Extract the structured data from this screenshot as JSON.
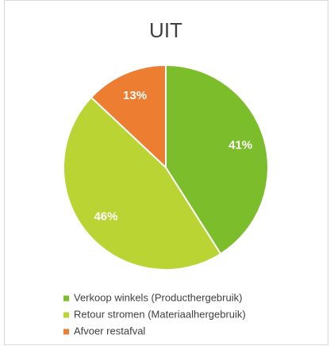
{
  "chart_data": {
    "type": "pie",
    "title": "UIT",
    "categories": [
      "Verkoop winkels (Producthergebruik)",
      "Retour stromen  (Materiaalhergebruik)",
      "Afvoer restafval"
    ],
    "values": [
      41,
      46,
      13
    ],
    "value_labels": [
      "41%",
      "46%",
      "13%"
    ],
    "colors": [
      "#7cbd2b",
      "#b9d433",
      "#ed7d31"
    ]
  }
}
